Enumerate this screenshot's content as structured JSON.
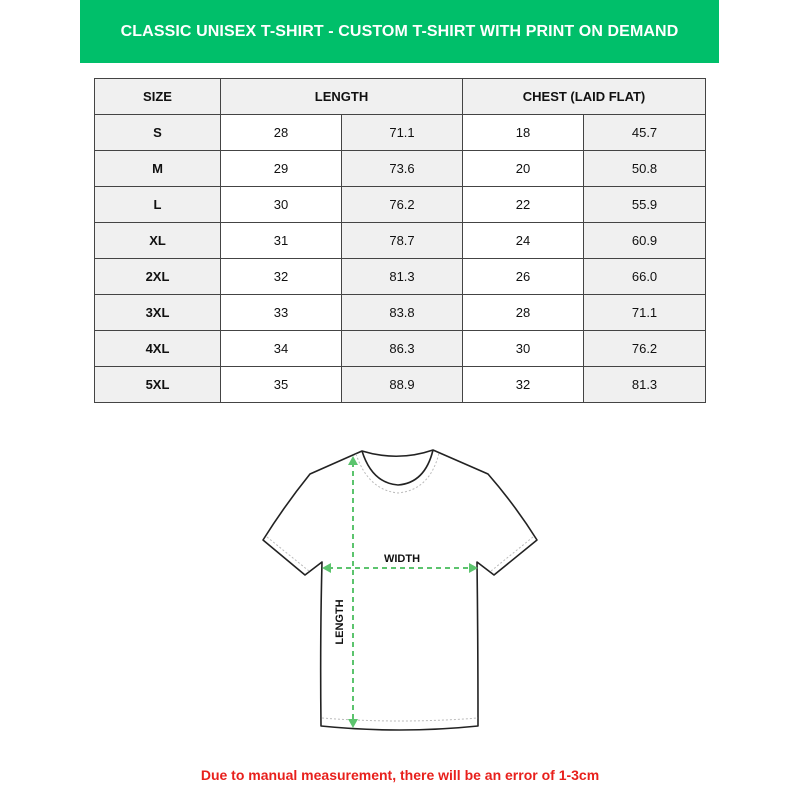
{
  "title": "CLASSIC UNISEX T-SHIRT - CUSTOM T-SHIRT WITH PRINT ON DEMAND",
  "table": {
    "headers": [
      "SIZE",
      "LENGTH",
      "CHEST (LAID FLAT)"
    ],
    "rows": [
      [
        "S",
        "28",
        "71.1",
        "18",
        "45.7"
      ],
      [
        "M",
        "29",
        "73.6",
        "20",
        "50.8"
      ],
      [
        "L",
        "30",
        "76.2",
        "22",
        "55.9"
      ],
      [
        "XL",
        "31",
        "78.7",
        "24",
        "60.9"
      ],
      [
        "2XL",
        "32",
        "81.3",
        "26",
        "66.0"
      ],
      [
        "3XL",
        "33",
        "83.8",
        "28",
        "71.1"
      ],
      [
        "4XL",
        "34",
        "86.3",
        "30",
        "76.2"
      ],
      [
        "5XL",
        "35",
        "88.9",
        "32",
        "81.3"
      ]
    ]
  },
  "diagram": {
    "width_label": "WIDTH",
    "length_label": "LENGTH",
    "arrow_color": "#5cc46e"
  },
  "note": "Due to manual measurement, there will be an error of 1-3cm",
  "colors": {
    "banner": "#00bf6a",
    "note": "#e8201c"
  }
}
